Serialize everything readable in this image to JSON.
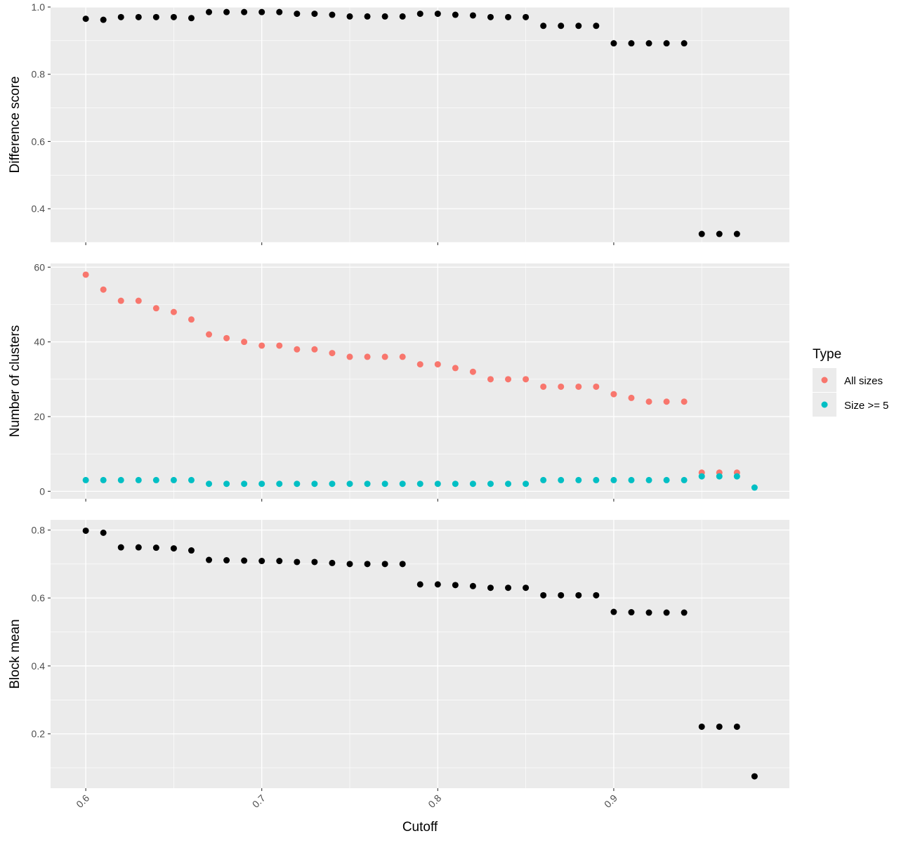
{
  "chart_data": [
    {
      "type": "scatter",
      "ylabel": "Difference score",
      "ylim": [
        0.3,
        1.0
      ],
      "yticks": [
        0.4,
        0.6,
        0.8,
        1.0
      ],
      "ytick_labels": [
        "0.4",
        "0.6",
        "0.8",
        "1.0"
      ],
      "series": [
        {
          "color": "#000000",
          "x": [
            0.6,
            0.61,
            0.62,
            0.63,
            0.64,
            0.65,
            0.66,
            0.67,
            0.68,
            0.69,
            0.7,
            0.71,
            0.72,
            0.73,
            0.74,
            0.75,
            0.76,
            0.77,
            0.78,
            0.79,
            0.8,
            0.81,
            0.82,
            0.83,
            0.84,
            0.85,
            0.86,
            0.87,
            0.88,
            0.89,
            0.9,
            0.91,
            0.92,
            0.93,
            0.94,
            0.95,
            0.96,
            0.97
          ],
          "y": [
            0.965,
            0.962,
            0.97,
            0.97,
            0.97,
            0.97,
            0.967,
            0.985,
            0.985,
            0.985,
            0.985,
            0.985,
            0.98,
            0.98,
            0.977,
            0.972,
            0.972,
            0.972,
            0.972,
            0.98,
            0.98,
            0.977,
            0.975,
            0.97,
            0.97,
            0.97,
            0.944,
            0.944,
            0.944,
            0.944,
            0.892,
            0.892,
            0.892,
            0.892,
            0.892,
            0.325,
            0.325,
            0.325
          ]
        }
      ]
    },
    {
      "type": "scatter",
      "ylabel": "Number of clusters",
      "ylim": [
        -2,
        61
      ],
      "yticks": [
        0,
        20,
        40,
        60
      ],
      "ytick_labels": [
        "0",
        "20",
        "40",
        "60"
      ],
      "legend": {
        "title": "Type",
        "position": "right"
      },
      "series": [
        {
          "name": "All sizes",
          "color": "#F8766D",
          "x": [
            0.6,
            0.61,
            0.62,
            0.63,
            0.64,
            0.65,
            0.66,
            0.67,
            0.68,
            0.69,
            0.7,
            0.71,
            0.72,
            0.73,
            0.74,
            0.75,
            0.76,
            0.77,
            0.78,
            0.79,
            0.8,
            0.81,
            0.82,
            0.83,
            0.84,
            0.85,
            0.86,
            0.87,
            0.88,
            0.89,
            0.9,
            0.91,
            0.92,
            0.93,
            0.94,
            0.95,
            0.96,
            0.97
          ],
          "y": [
            58,
            54,
            51,
            51,
            49,
            48,
            46,
            42,
            41,
            40,
            39,
            39,
            38,
            38,
            37,
            36,
            36,
            36,
            36,
            34,
            34,
            33,
            32,
            30,
            30,
            30,
            28,
            28,
            28,
            28,
            26,
            25,
            24,
            24,
            24,
            5,
            5,
            5
          ]
        },
        {
          "name": "Size >= 5",
          "color": "#00BFC4",
          "x": [
            0.6,
            0.61,
            0.62,
            0.63,
            0.64,
            0.65,
            0.66,
            0.67,
            0.68,
            0.69,
            0.7,
            0.71,
            0.72,
            0.73,
            0.74,
            0.75,
            0.76,
            0.77,
            0.78,
            0.79,
            0.8,
            0.81,
            0.82,
            0.83,
            0.84,
            0.85,
            0.86,
            0.87,
            0.88,
            0.89,
            0.9,
            0.91,
            0.92,
            0.93,
            0.94,
            0.95,
            0.96,
            0.97,
            0.98
          ],
          "y": [
            3,
            3,
            3,
            3,
            3,
            3,
            3,
            2,
            2,
            2,
            2,
            2,
            2,
            2,
            2,
            2,
            2,
            2,
            2,
            2,
            2,
            2,
            2,
            2,
            2,
            2,
            3,
            3,
            3,
            3,
            3,
            3,
            3,
            3,
            3,
            4,
            4,
            4,
            1
          ]
        }
      ]
    },
    {
      "type": "scatter",
      "ylabel": "Block mean",
      "xlabel": "Cutoff",
      "ylim": [
        0.04,
        0.83
      ],
      "yticks": [
        0.2,
        0.4,
        0.6,
        0.8
      ],
      "ytick_labels": [
        "0.2",
        "0.4",
        "0.6",
        "0.8"
      ],
      "series": [
        {
          "color": "#000000",
          "x": [
            0.6,
            0.61,
            0.62,
            0.63,
            0.64,
            0.65,
            0.66,
            0.67,
            0.68,
            0.69,
            0.7,
            0.71,
            0.72,
            0.73,
            0.74,
            0.75,
            0.76,
            0.77,
            0.78,
            0.79,
            0.8,
            0.81,
            0.82,
            0.83,
            0.84,
            0.85,
            0.86,
            0.87,
            0.88,
            0.89,
            0.9,
            0.91,
            0.92,
            0.93,
            0.94,
            0.95,
            0.96,
            0.97,
            0.98
          ],
          "y": [
            0.798,
            0.792,
            0.749,
            0.749,
            0.748,
            0.746,
            0.74,
            0.712,
            0.711,
            0.71,
            0.709,
            0.709,
            0.706,
            0.706,
            0.703,
            0.7,
            0.7,
            0.7,
            0.7,
            0.64,
            0.64,
            0.638,
            0.635,
            0.63,
            0.63,
            0.63,
            0.608,
            0.608,
            0.608,
            0.608,
            0.559,
            0.558,
            0.557,
            0.557,
            0.557,
            0.221,
            0.221,
            0.221,
            0.075
          ]
        }
      ]
    }
  ],
  "x_axis": {
    "label": "Cutoff",
    "xlim": [
      0.58,
      0.9998
    ],
    "ticks": [
      0.6,
      0.7,
      0.8,
      0.9
    ],
    "tick_labels": [
      "0.6",
      "0.7",
      "0.8",
      "0.9"
    ],
    "tick_rotation": -45
  },
  "legend": {
    "title": "Type",
    "items": [
      {
        "label": "All sizes",
        "color": "#F8766D"
      },
      {
        "label": "Size >= 5",
        "color": "#00BFC4"
      }
    ]
  }
}
